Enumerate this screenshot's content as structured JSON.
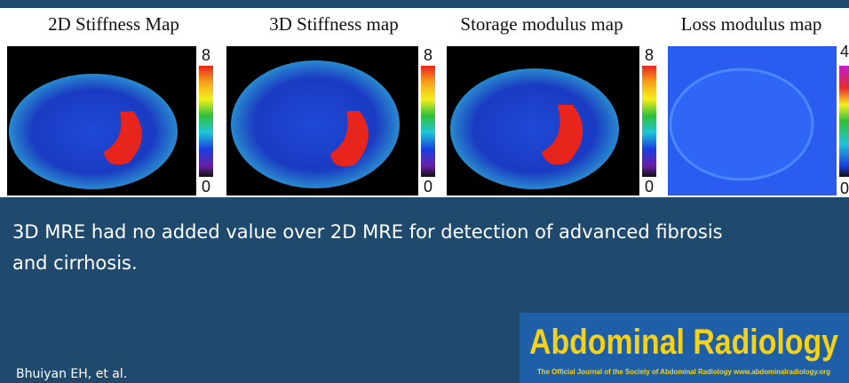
{
  "panels": [
    {
      "title": "2D Stiffness Map",
      "scale_max": "8",
      "scale_min": "0"
    },
    {
      "title": "3D Stiffness map",
      "scale_max": "8",
      "scale_min": "0"
    },
    {
      "title": "Storage modulus map",
      "scale_max": "8",
      "scale_min": "0"
    },
    {
      "title": "Loss modulus map",
      "scale_max": "4",
      "scale_min": "0"
    }
  ],
  "conclusion": [
    "3D MRE had no added value over 2D MRE for detection of advanced fibrosis",
    "and cirrhosis."
  ],
  "citation": "Bhuiyan EH, et al.",
  "journal": {
    "name": "Abdominal Radiology",
    "tagline": "The Official Journal of the Society of Abdominal Radiology  www.abdominalradiology.org"
  }
}
